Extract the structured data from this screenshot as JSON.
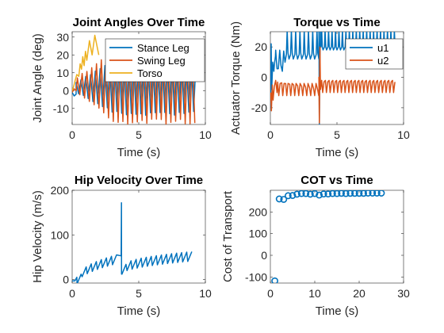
{
  "figure": {
    "background": "#ffffff"
  },
  "colors": {
    "c1": "#0072BD",
    "c2": "#D95319",
    "c3": "#EDB120"
  },
  "chart_data": [
    {
      "id": "p1",
      "type": "line",
      "title": "Joint Angles Over Time",
      "xlabel": "Time (s)",
      "ylabel": "Joint Angle (deg)",
      "xlim": [
        0,
        10
      ],
      "ylim": [
        -19,
        33
      ],
      "xticks": [
        0,
        5,
        10
      ],
      "yticks": [
        -10,
        0,
        10,
        20,
        30
      ],
      "legend": {
        "placement": "top-right"
      },
      "series": [
        {
          "name": "Stance Leg",
          "color": "#0072BD",
          "shape": "osc",
          "t0": 0.3,
          "t1": 9.3,
          "period": 0.36,
          "center": 2,
          "amp_start": 3,
          "amp_end": 16,
          "start_x": [
            0,
            0.15,
            0.3
          ],
          "start_y": [
            -1,
            -3,
            -2
          ]
        },
        {
          "name": "Swing Leg",
          "color": "#D95319",
          "shape": "osc",
          "t0": 0.3,
          "t1": 9.3,
          "period": 0.36,
          "phase": 0.5,
          "center": 3,
          "amp_start": 4,
          "amp_end": 22,
          "start_x": [
            0,
            0.15,
            0.3
          ],
          "start_y": [
            -1,
            1,
            0
          ]
        },
        {
          "name": "Torso",
          "color": "#EDB120",
          "x": [
            0,
            0.1,
            0.2,
            0.35,
            0.5,
            0.6,
            0.7,
            0.8,
            0.9,
            1.0,
            1.1,
            1.3,
            1.5,
            1.7,
            2.0
          ],
          "y": [
            0,
            2,
            5,
            9,
            8,
            15,
            12,
            19,
            14,
            22,
            17,
            28,
            20,
            31,
            20
          ]
        }
      ]
    },
    {
      "id": "p2",
      "type": "line",
      "title": "Torque vs Time",
      "xlabel": "Time (s)",
      "ylabel": "Actuator Torque (Nm)",
      "xlim": [
        0,
        10
      ],
      "ylim": [
        -31,
        30
      ],
      "xticks": [
        0,
        5,
        10
      ],
      "yticks": [
        -20,
        0,
        20
      ],
      "legend": {
        "placement": "top-right"
      },
      "series": [
        {
          "name": "u1",
          "color": "#0072BD",
          "shape": "torque1"
        },
        {
          "name": "u2",
          "color": "#D95319",
          "shape": "torque2"
        }
      ]
    },
    {
      "id": "p3",
      "type": "line",
      "title": "Hip Velocity Over Time",
      "xlabel": "Time (s)",
      "ylabel": "Hip Velocity (m/s)",
      "xlim": [
        0,
        10
      ],
      "ylim": [
        -8,
        200
      ],
      "xticks": [
        0,
        5,
        10
      ],
      "yticks": [
        0,
        100,
        200
      ],
      "series": [
        {
          "name": "",
          "color": "#0072BD",
          "shape": "saw",
          "x": [
            0,
            0.2,
            0.35
          ],
          "y": [
            -3,
            -3,
            5
          ],
          "period": 0.38,
          "t0": 0.35,
          "t1": 3.65,
          "base_start": 10,
          "base_end": 58,
          "drop": 20,
          "spike_x": 3.7,
          "spike_y": 172,
          "t2": 3.72,
          "t3": 9.2,
          "base2_start": 32,
          "base2_end": 62
        }
      ]
    },
    {
      "id": "p4",
      "type": "scatter",
      "title": "COT vs Time",
      "xlabel": "Time (s)",
      "ylabel": "Cost of Transport",
      "xlim": [
        0,
        30
      ],
      "ylim": [
        -128,
        300
      ],
      "xticks": [
        0,
        10,
        20,
        30
      ],
      "yticks": [
        -100,
        0,
        100,
        200
      ],
      "series": [
        {
          "name": "",
          "color": "#0072BD",
          "x": [
            1,
            2,
            3,
            4,
            5,
            6,
            7,
            8,
            9,
            10,
            11,
            12,
            13,
            14,
            15,
            16,
            17,
            18,
            19,
            20,
            21,
            22,
            23,
            24,
            25
          ],
          "y": [
            -118,
            260,
            258,
            275,
            276,
            282,
            285,
            285,
            282,
            285,
            278,
            283,
            283,
            285,
            285,
            286,
            285,
            286,
            286,
            286,
            286,
            287,
            287,
            287,
            287
          ]
        }
      ]
    }
  ]
}
